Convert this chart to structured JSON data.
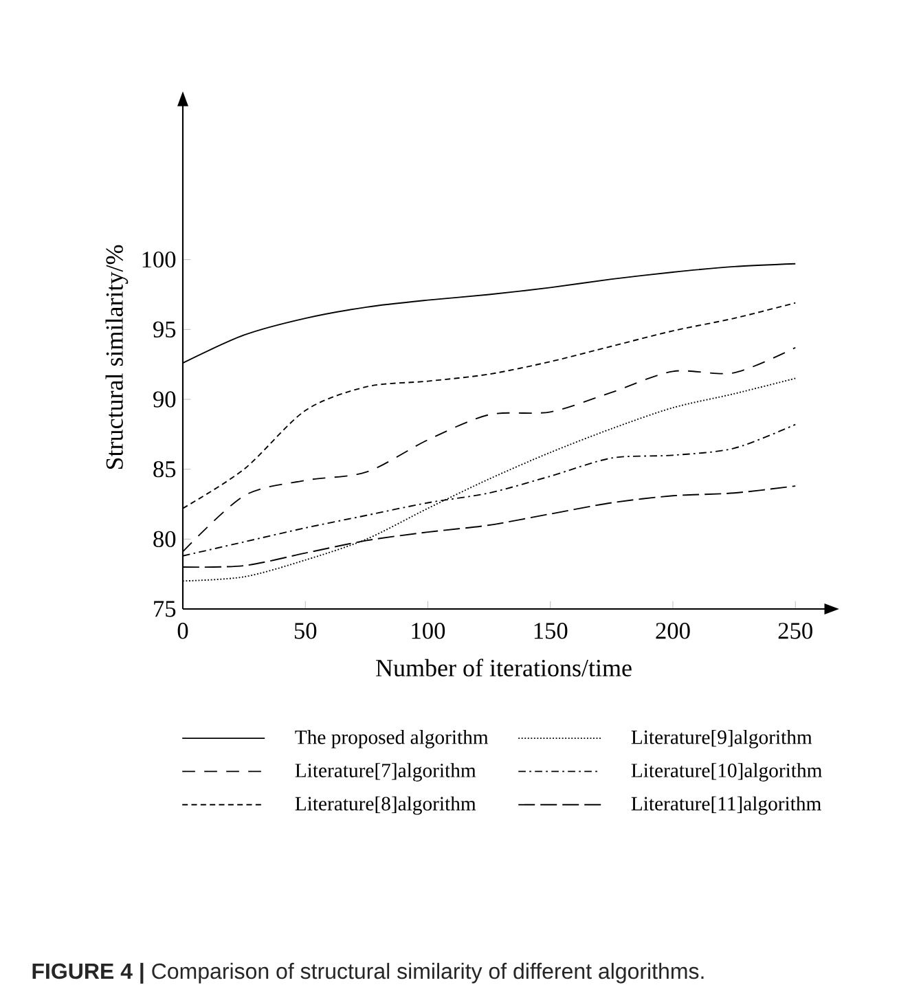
{
  "chart_data": {
    "type": "line",
    "xlabel": "Number of iterations/time",
    "ylabel": "Structural similarity/%",
    "x": [
      0,
      25,
      50,
      75,
      100,
      125,
      150,
      175,
      200,
      225,
      250
    ],
    "series": [
      {
        "name": "The proposed algorithm",
        "color": "#000000",
        "line_style": "solid",
        "values": [
          92.6,
          94.6,
          95.8,
          96.6,
          97.1,
          97.5,
          98.0,
          98.6,
          99.1,
          99.5,
          99.7
        ]
      },
      {
        "name": "Literature[9]algorithm",
        "color": "#000000",
        "line_style": "dotted",
        "values": [
          77.0,
          77.3,
          78.5,
          80.0,
          82.2,
          84.3,
          86.2,
          87.9,
          89.4,
          90.4,
          91.5
        ]
      },
      {
        "name": "Literature[7]algorithm",
        "color": "#000000",
        "line_style": "long dashed",
        "values": [
          79.1,
          83.1,
          84.2,
          84.8,
          87.1,
          88.9,
          89.1,
          90.5,
          92.0,
          91.9,
          93.7
        ]
      },
      {
        "name": "Literature[10]algorithm",
        "color": "#000000",
        "line_style": "dash dot",
        "values": [
          78.8,
          79.8,
          80.8,
          81.7,
          82.6,
          83.3,
          84.5,
          85.8,
          86.0,
          86.5,
          88.2
        ]
      },
      {
        "name": "Literature[8]algorithm",
        "color": "#000000",
        "line_style": "dashed",
        "values": [
          82.2,
          85.0,
          89.2,
          90.9,
          91.3,
          91.8,
          92.7,
          93.8,
          94.9,
          95.8,
          96.9
        ]
      },
      {
        "name": "Literature[11]algorithm",
        "color": "#000000",
        "line_style": "long dash",
        "values": [
          78.0,
          78.1,
          79.0,
          79.9,
          80.5,
          81.0,
          81.8,
          82.6,
          83.1,
          83.3,
          83.8
        ]
      }
    ],
    "xlim": [
      0,
      262
    ],
    "ylim": [
      75,
      111
    ],
    "xticks": [
      0,
      50,
      100,
      150,
      200,
      250
    ],
    "yticks": [
      75,
      80,
      85,
      90,
      95,
      100
    ],
    "marker": "none",
    "legend": "bottom",
    "annotations": [
      "**FIGURE 4 |** Comparison of structural similarity of different algorithms."
    ]
  }
}
